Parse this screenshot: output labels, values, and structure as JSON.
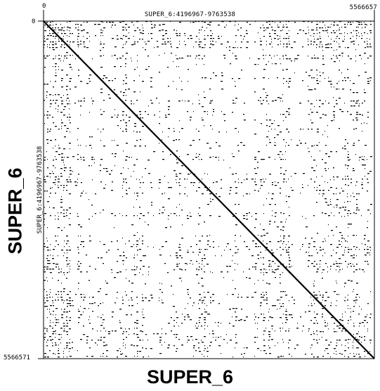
{
  "chart_data": {
    "type": "scatter",
    "title": "SUPER_6:4196967-9763538",
    "xlabel": "SUPER_6",
    "ylabel": "SUPER_6",
    "y_side_title": "SUPER_6:4196967-9763538",
    "xlim": [
      0,
      5566657
    ],
    "ylim": [
      0,
      5566571
    ],
    "x_ticks": [
      "0",
      "5566657"
    ],
    "y_ticks": [
      "0",
      "5566571"
    ],
    "grid": false,
    "legend": "none",
    "colors": {
      "background": "#ffffff",
      "dots": "#000000"
    }
  }
}
